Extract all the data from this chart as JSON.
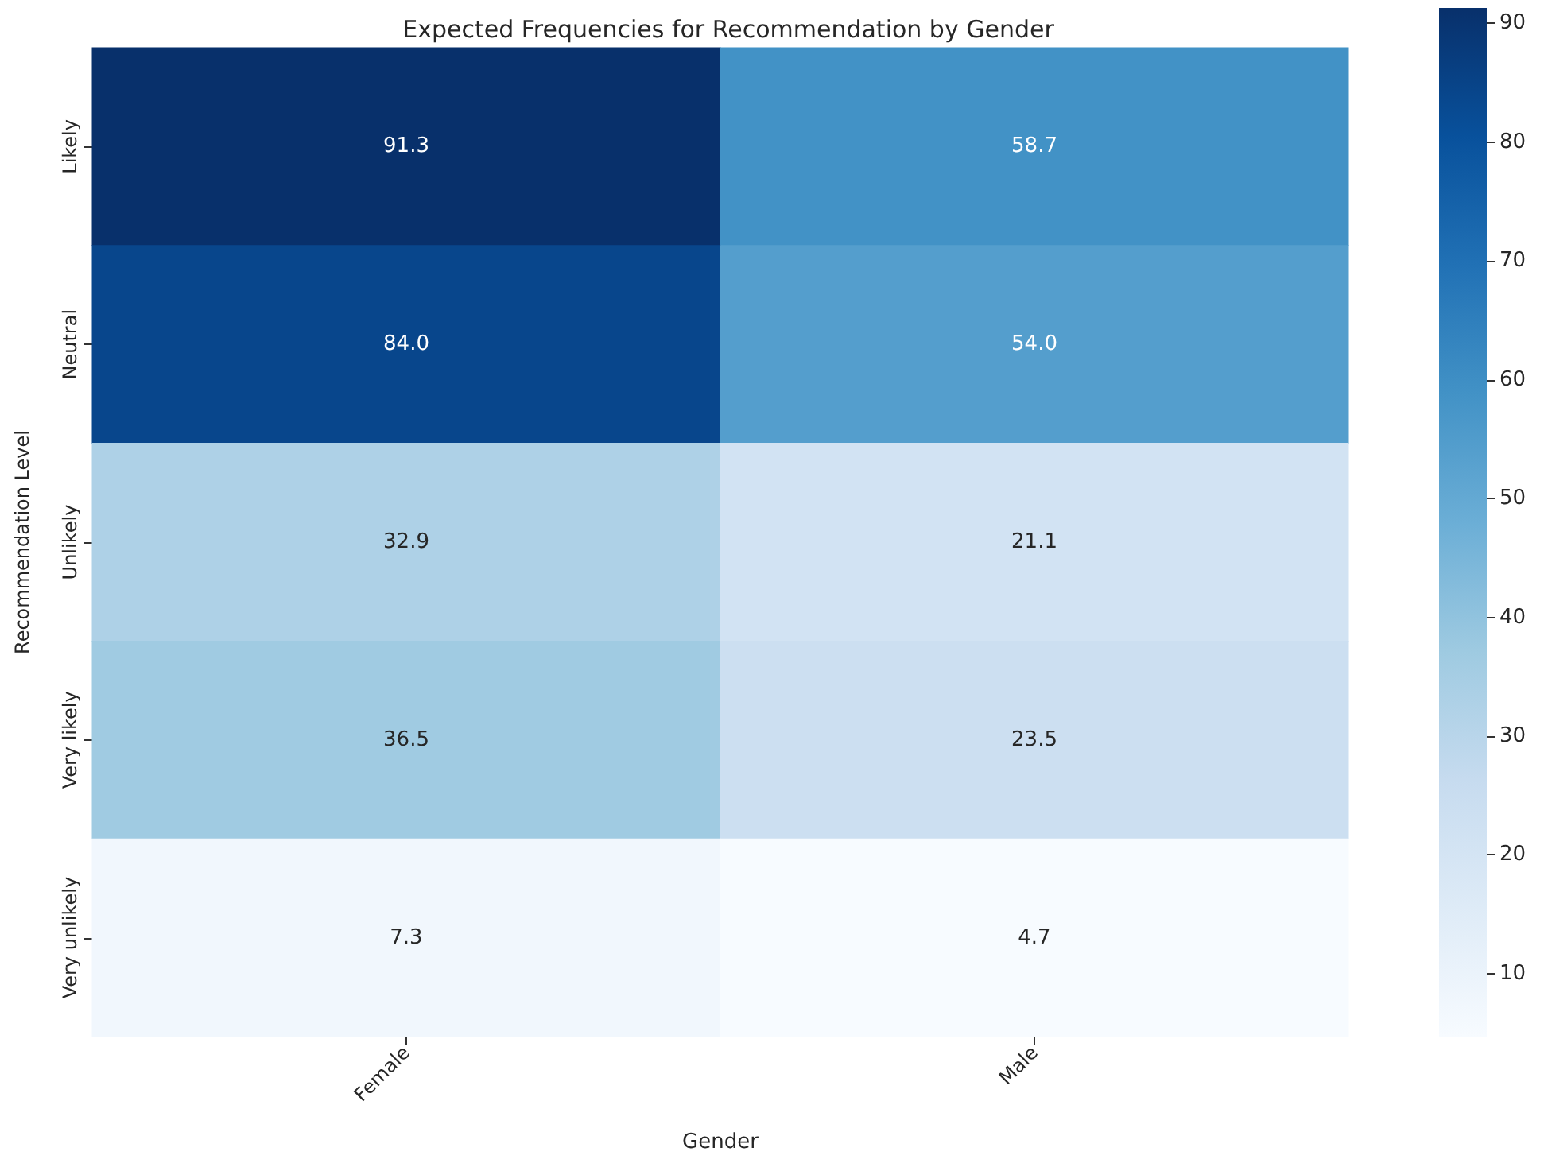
{
  "chart_data": {
    "type": "heatmap",
    "title": "Expected Frequencies for Recommendation by Gender",
    "xlabel": "Gender",
    "ylabel": "Recommendation Level",
    "categories": [
      "Female",
      "Male"
    ],
    "y_categories": [
      "Likely",
      "Neutral",
      "Unlikely",
      "Very likely",
      "Very unlikely"
    ],
    "cells": [
      [
        91.3,
        58.7
      ],
      [
        84.0,
        54.0
      ],
      [
        32.9,
        21.1
      ],
      [
        36.5,
        23.5
      ],
      [
        7.3,
        4.7
      ]
    ],
    "cell_labels": [
      [
        "91.3",
        "58.7"
      ],
      [
        "84.0",
        "54.0"
      ],
      [
        "32.9",
        "21.1"
      ],
      [
        "36.5",
        "23.5"
      ],
      [
        "7.3",
        "4.7"
      ]
    ],
    "clim": [
      4.7,
      91.3
    ],
    "cticks": [
      10,
      20,
      30,
      40,
      50,
      60,
      70,
      80,
      90
    ]
  }
}
